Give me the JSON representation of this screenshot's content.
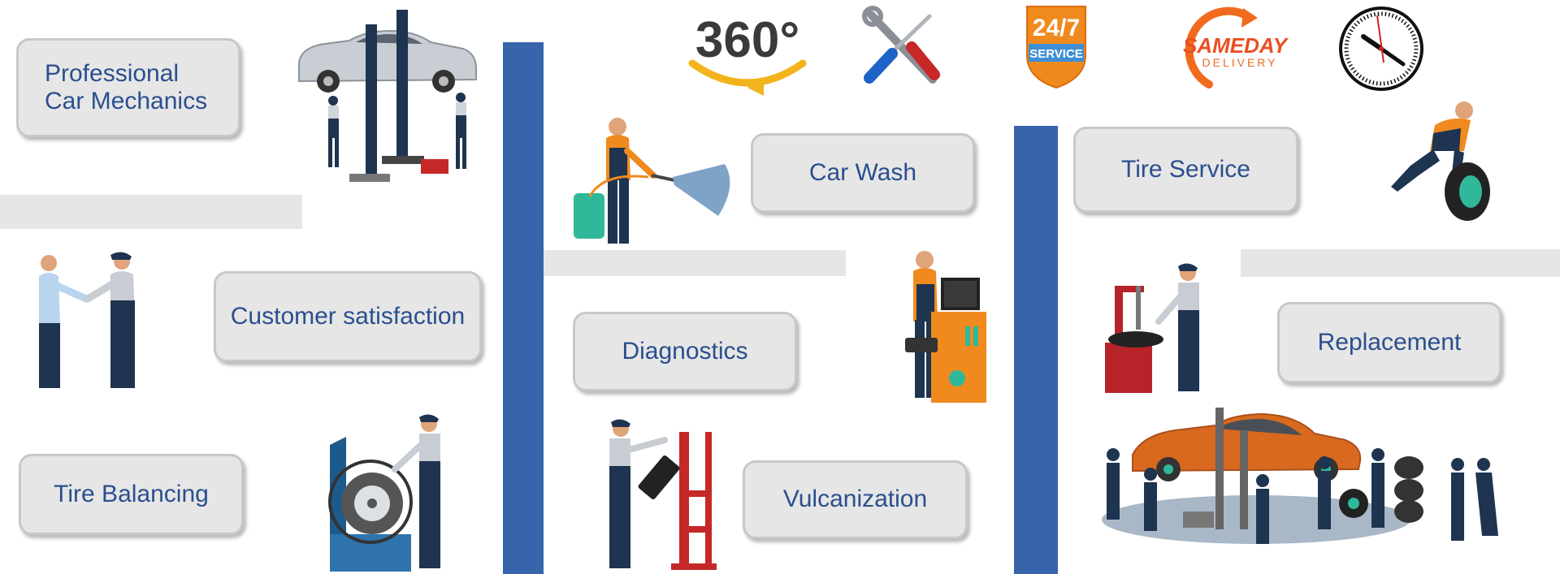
{
  "labels": {
    "professional_line1": "Professional",
    "professional_line2": "Car Mechanics",
    "customer_satisfaction": "Customer satisfaction",
    "tire_balancing": "Tire Balancing",
    "car_wash": "Car Wash",
    "diagnostics": "Diagnostics",
    "vulcanization": "Vulcanization",
    "tire_service": "Tire Service",
    "replacement": "Replacement"
  },
  "badges": {
    "degrees_360": "360°",
    "service_247_top": "24/7",
    "service_247_bottom": "SERVICE",
    "sameday_top": "SAMEDAY",
    "sameday_bottom": "DELIVERY"
  },
  "colors": {
    "accent_blue": "#3764aa",
    "label_text": "#2a4f8e",
    "box_fill": "#e6e6e6",
    "worker_orange": "#f08a1e",
    "worker_navy": "#1e3450",
    "machine_red": "#b8232a"
  }
}
